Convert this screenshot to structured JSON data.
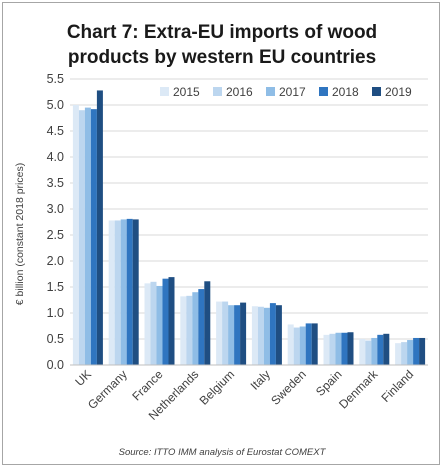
{
  "chart_data": {
    "type": "bar",
    "title_lines": [
      "Chart 7: Extra-EU imports of wood",
      "products by western EU countries"
    ],
    "ylabel": "€ billion (constant 2018 prices)",
    "source": "Source: ITTO IMM analysis of Eurostat COMEXT",
    "ylim": [
      0,
      5.5
    ],
    "yticks": [
      "0.0",
      "0.5",
      "1.0",
      "1.5",
      "2.0",
      "2.5",
      "3.0",
      "3.5",
      "4.0",
      "4.5",
      "5.0",
      "5.5"
    ],
    "grid": true,
    "legend_position": "top-right",
    "categories": [
      "UK",
      "Germany",
      "France",
      "Netherlands",
      "Belgium",
      "Italy",
      "Sweden",
      "Spain",
      "Denmark",
      "Finland"
    ],
    "series": [
      {
        "name": "2015",
        "color": "#dce9f6",
        "values": [
          5.0,
          2.78,
          1.57,
          1.32,
          1.22,
          1.13,
          0.78,
          0.58,
          0.5,
          0.42
        ]
      },
      {
        "name": "2016",
        "color": "#bcd6ef",
        "values": [
          4.9,
          2.78,
          1.6,
          1.33,
          1.22,
          1.12,
          0.72,
          0.6,
          0.47,
          0.44
        ]
      },
      {
        "name": "2017",
        "color": "#8fbde6",
        "values": [
          4.95,
          2.8,
          1.52,
          1.4,
          1.15,
          1.1,
          0.74,
          0.62,
          0.52,
          0.48
        ]
      },
      {
        "name": "2018",
        "color": "#2f75c0",
        "values": [
          4.92,
          2.81,
          1.66,
          1.46,
          1.15,
          1.19,
          0.8,
          0.62,
          0.58,
          0.52
        ]
      },
      {
        "name": "2019",
        "color": "#1f4e82",
        "values": [
          5.28,
          2.8,
          1.69,
          1.61,
          1.2,
          1.15,
          0.8,
          0.63,
          0.6,
          0.52
        ]
      }
    ]
  }
}
